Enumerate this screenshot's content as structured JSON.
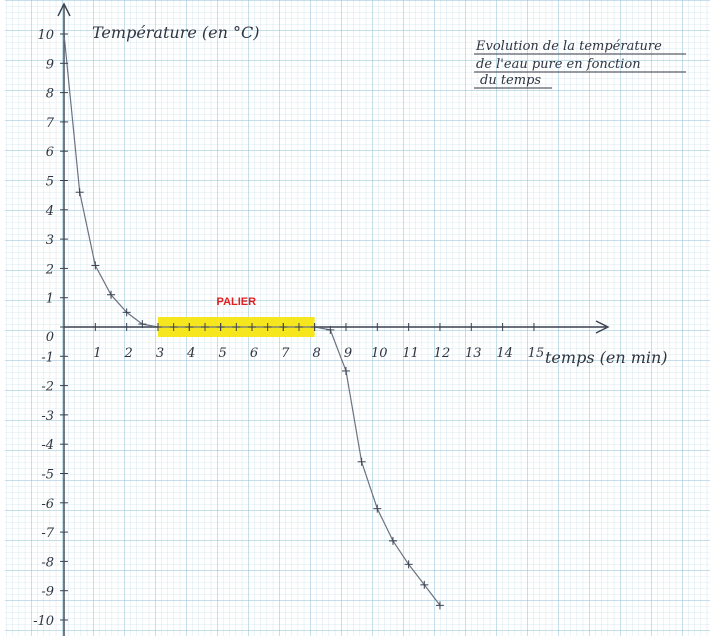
{
  "chart_data": {
    "type": "line",
    "title_lines": [
      "Evolution de la température",
      "de l'eau pure en fonction",
      "du temps"
    ],
    "xlabel": "temps (en min)",
    "ylabel": "Température (en °C)",
    "xlim": [
      0,
      15
    ],
    "ylim": [
      -10,
      10
    ],
    "x_ticks": [
      "1",
      "2",
      "3",
      "4",
      "5",
      "6",
      "7",
      "8",
      "9",
      "10",
      "11",
      "12",
      "13",
      "14",
      "15"
    ],
    "y_ticks": [
      {
        "v": 10,
        "t": "10"
      },
      {
        "v": 9,
        "t": "9"
      },
      {
        "v": 8,
        "t": "8"
      },
      {
        "v": 7,
        "t": "7"
      },
      {
        "v": 6,
        "t": "6"
      },
      {
        "v": 5,
        "t": "5"
      },
      {
        "v": 4,
        "t": "4"
      },
      {
        "v": 3,
        "t": "3"
      },
      {
        "v": 2,
        "t": "2"
      },
      {
        "v": 1,
        "t": "1"
      },
      {
        "v": 0,
        "t": "0"
      },
      {
        "v": -1,
        "t": "-1"
      },
      {
        "v": -2,
        "t": "-2"
      },
      {
        "v": -3,
        "t": "-3"
      },
      {
        "v": -4,
        "t": "-4"
      },
      {
        "v": -5,
        "t": "-5"
      },
      {
        "v": -6,
        "t": "-6"
      },
      {
        "v": -7,
        "t": "-7"
      },
      {
        "v": -8,
        "t": "-8"
      },
      {
        "v": -9,
        "t": "-9"
      },
      {
        "v": -10,
        "t": "-10"
      }
    ],
    "series": [
      {
        "x": [
          0,
          0.5,
          1,
          1.5,
          2,
          2.5,
          3,
          3.5,
          4,
          4.5,
          5,
          5.5,
          6,
          6.5,
          7,
          7.5,
          8,
          8.5,
          9,
          9.5,
          10,
          10.5,
          11,
          11.5,
          12
        ],
        "y": [
          10,
          4.6,
          2.1,
          1.1,
          0.5,
          0.1,
          0,
          0,
          0,
          0,
          0,
          0,
          0,
          0,
          0,
          0,
          0,
          -0.1,
          -1.5,
          -4.6,
          -6.2,
          -7.3,
          -8.1,
          -8.8,
          -9.5
        ]
      }
    ],
    "annotation": {
      "text": "PALIER",
      "x_start": 3,
      "x_end": 8,
      "color": "#f5e61e"
    },
    "grid": true
  }
}
